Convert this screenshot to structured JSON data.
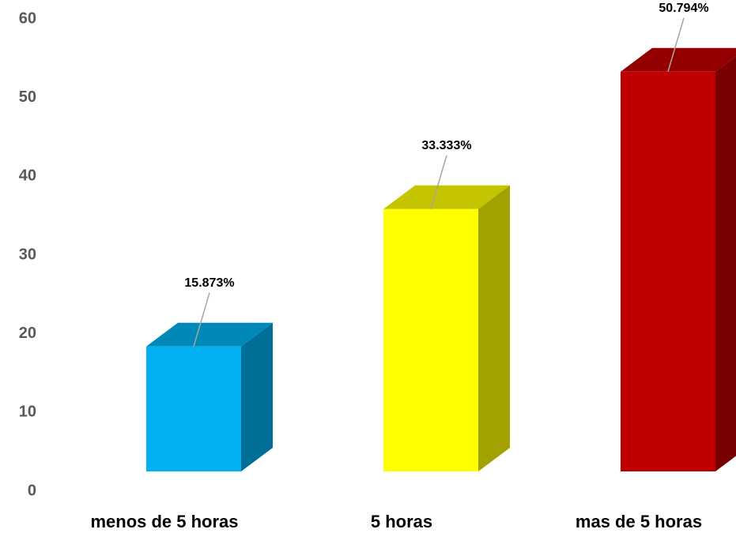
{
  "chart_data": {
    "type": "bar",
    "categories": [
      "menos de 5 horas",
      "5 horas",
      "mas de 5 horas"
    ],
    "values": [
      15.873,
      33.333,
      50.794
    ],
    "value_labels": [
      "15.873%",
      "33.333%",
      "50.794%"
    ],
    "colors": [
      "#00b0f0",
      "#ffff00",
      "#c00000"
    ],
    "ylim": [
      0,
      60
    ],
    "yticks": [
      0,
      10,
      20,
      30,
      40,
      50,
      60
    ],
    "grid": false
  }
}
